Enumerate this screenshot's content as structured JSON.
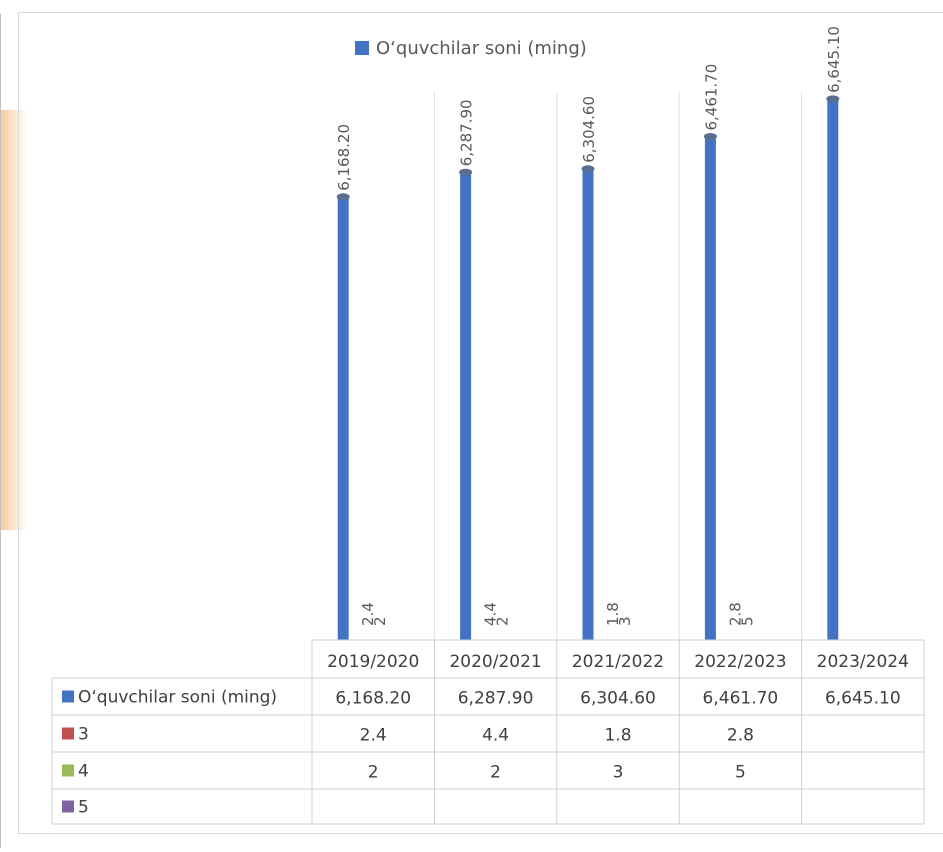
{
  "chart_data": {
    "type": "bar",
    "categories": [
      "2019/2020",
      "2020/2021",
      "2021/2022",
      "2022/2023",
      "2023/2024"
    ],
    "series": [
      {
        "name": "O‘quvchilar soni (ming)",
        "color": "#4472C4",
        "values": [
          6168.2,
          6287.9,
          6304.6,
          6461.7,
          6645.1
        ],
        "labels": [
          "6,168.20",
          "6,287.90",
          "6,304.60",
          "6,461.70",
          "6,645.10"
        ]
      },
      {
        "name": "3",
        "color": "#C0504D",
        "values": [
          2.4,
          4.4,
          1.8,
          2.8,
          null
        ],
        "labels": [
          "2.4",
          "4.4",
          "1.8",
          "2.8",
          ""
        ]
      },
      {
        "name": "4",
        "color": "#9BBB59",
        "values": [
          2,
          2,
          3,
          5,
          null
        ],
        "labels": [
          "2",
          "2",
          "3",
          "5",
          ""
        ]
      },
      {
        "name": "5",
        "color": "#8064A2",
        "values": [
          null,
          null,
          null,
          null,
          null
        ],
        "labels": [
          "",
          "",
          "",
          "",
          ""
        ]
      }
    ],
    "legend": "top",
    "data_table": true,
    "grid": false,
    "title": "",
    "xlabel": "",
    "ylabel": ""
  }
}
